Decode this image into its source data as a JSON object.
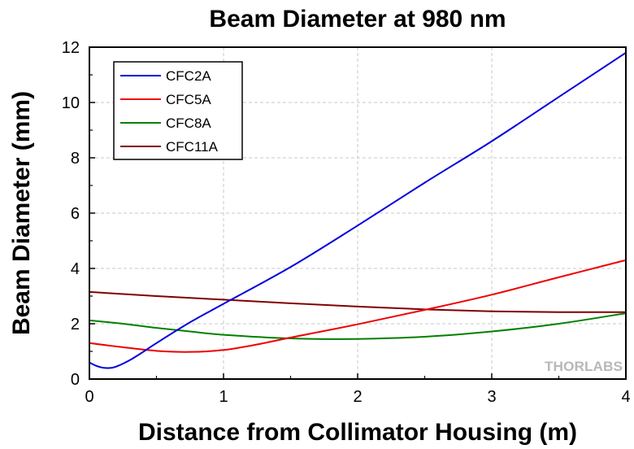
{
  "chart_data": {
    "type": "line",
    "title": "Beam Diameter at 980 nm",
    "xlabel": "Distance from Collimator Housing (m)",
    "ylabel": "Beam Diameter (mm)",
    "xlim": [
      0,
      4
    ],
    "ylim": [
      0,
      12
    ],
    "xticks": [
      "0",
      "1",
      "2",
      "3",
      "4"
    ],
    "yticks": [
      "0",
      "2",
      "4",
      "6",
      "8",
      "10",
      "12"
    ],
    "grid": "dashed vertical and horizontal",
    "legend_position": "top-left",
    "watermark": "THORLABS",
    "series": [
      {
        "name": "CFC2A",
        "color": "#0000dd",
        "points": [
          [
            0,
            0.6
          ],
          [
            0.05,
            0.48
          ],
          [
            0.1,
            0.41
          ],
          [
            0.15,
            0.4
          ],
          [
            0.2,
            0.45
          ],
          [
            0.3,
            0.68
          ],
          [
            0.4,
            0.98
          ],
          [
            0.5,
            1.3
          ],
          [
            0.75,
            2.05
          ],
          [
            1.0,
            2.72
          ],
          [
            1.5,
            4.05
          ],
          [
            2.0,
            5.55
          ],
          [
            2.5,
            7.1
          ],
          [
            3.0,
            8.6
          ],
          [
            3.5,
            10.2
          ],
          [
            4.0,
            11.8
          ]
        ]
      },
      {
        "name": "CFC5A",
        "color": "#ee0000",
        "points": [
          [
            0,
            1.3
          ],
          [
            0.25,
            1.15
          ],
          [
            0.5,
            1.02
          ],
          [
            0.75,
            0.98
          ],
          [
            1.0,
            1.05
          ],
          [
            1.25,
            1.25
          ],
          [
            1.5,
            1.5
          ],
          [
            2.0,
            1.98
          ],
          [
            2.5,
            2.5
          ],
          [
            3.0,
            3.05
          ],
          [
            3.5,
            3.68
          ],
          [
            4.0,
            4.3
          ]
        ]
      },
      {
        "name": "CFC8A",
        "color": "#008000",
        "points": [
          [
            0,
            2.12
          ],
          [
            0.25,
            2.0
          ],
          [
            0.5,
            1.85
          ],
          [
            0.75,
            1.72
          ],
          [
            1.0,
            1.6
          ],
          [
            1.5,
            1.47
          ],
          [
            2.0,
            1.45
          ],
          [
            2.5,
            1.53
          ],
          [
            3.0,
            1.72
          ],
          [
            3.5,
            2.0
          ],
          [
            4.0,
            2.38
          ]
        ]
      },
      {
        "name": "CFC11A",
        "color": "#800000",
        "points": [
          [
            0,
            3.15
          ],
          [
            0.5,
            3.0
          ],
          [
            1.0,
            2.87
          ],
          [
            1.5,
            2.74
          ],
          [
            2.0,
            2.62
          ],
          [
            2.5,
            2.52
          ],
          [
            3.0,
            2.45
          ],
          [
            3.5,
            2.42
          ],
          [
            4.0,
            2.42
          ]
        ]
      }
    ]
  }
}
